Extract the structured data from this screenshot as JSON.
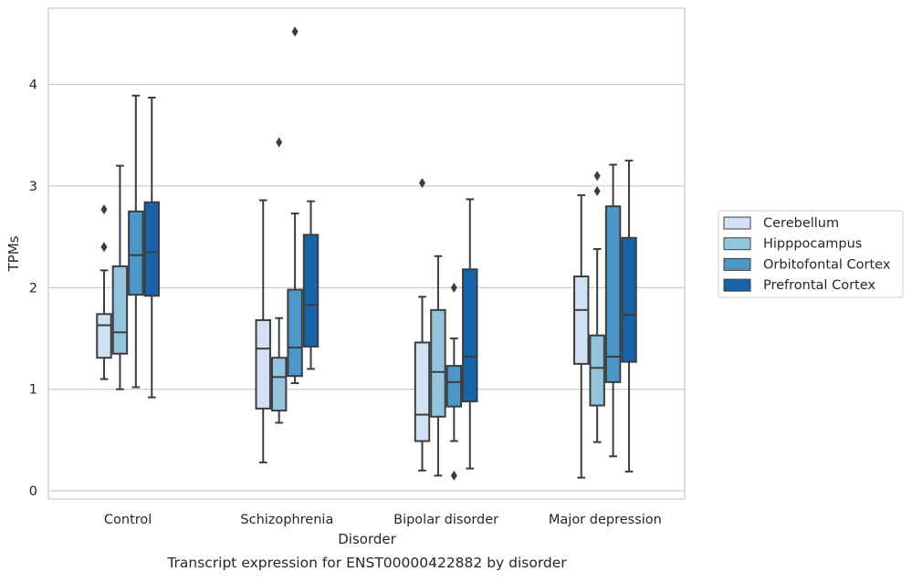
{
  "chart_data": {
    "type": "box",
    "title": "Transcript expression for ENST00000422882 by disorder",
    "xlabel": "Disorder",
    "ylabel": "TPMs",
    "ylim": [
      -0.08,
      4.75
    ],
    "yticks": [
      0,
      1,
      2,
      3,
      4
    ],
    "grid": true,
    "legend_position": "right",
    "categories": [
      "Control",
      "Schizophrenia",
      "Bipolar disorder",
      "Major depression"
    ],
    "series": [
      {
        "name": "Cerebellum",
        "color": "#cfe1f2",
        "boxes": [
          {
            "whisker_low": 1.1,
            "q1": 1.31,
            "median": 1.63,
            "q3": 1.74,
            "whisker_high": 2.17,
            "outliers": [
              2.4,
              2.77
            ]
          },
          {
            "whisker_low": 0.28,
            "q1": 0.81,
            "median": 1.4,
            "q3": 1.68,
            "whisker_high": 2.86,
            "outliers": []
          },
          {
            "whisker_low": 0.2,
            "q1": 0.49,
            "median": 0.75,
            "q3": 1.46,
            "whisker_high": 1.91,
            "outliers": [
              3.03
            ]
          },
          {
            "whisker_low": 0.13,
            "q1": 1.25,
            "median": 1.78,
            "q3": 2.11,
            "whisker_high": 2.91,
            "outliers": []
          }
        ]
      },
      {
        "name": "Hipppocampus",
        "color": "#93c4de",
        "boxes": [
          {
            "whisker_low": 1.0,
            "q1": 1.35,
            "median": 1.56,
            "q3": 2.21,
            "whisker_high": 3.2,
            "outliers": []
          },
          {
            "whisker_low": 0.67,
            "q1": 0.79,
            "median": 1.12,
            "q3": 1.31,
            "whisker_high": 1.7,
            "outliers": [
              3.43
            ]
          },
          {
            "whisker_low": 0.15,
            "q1": 0.73,
            "median": 1.17,
            "q3": 1.78,
            "whisker_high": 2.31,
            "outliers": []
          },
          {
            "whisker_low": 0.48,
            "q1": 0.84,
            "median": 1.21,
            "q3": 1.53,
            "whisker_high": 2.38,
            "outliers": [
              2.95,
              3.1
            ]
          }
        ]
      },
      {
        "name": "Orbitofontal Cortex",
        "color": "#4b97c9",
        "boxes": [
          {
            "whisker_low": 1.02,
            "q1": 1.93,
            "median": 2.32,
            "q3": 2.75,
            "whisker_high": 3.89,
            "outliers": []
          },
          {
            "whisker_low": 1.06,
            "q1": 1.13,
            "median": 1.41,
            "q3": 1.98,
            "whisker_high": 2.73,
            "outliers": [
              4.52
            ]
          },
          {
            "whisker_low": 0.49,
            "q1": 0.83,
            "median": 1.07,
            "q3": 1.23,
            "whisker_high": 1.5,
            "outliers": [
              2.0,
              0.15
            ]
          },
          {
            "whisker_low": 0.34,
            "q1": 1.07,
            "median": 1.32,
            "q3": 2.8,
            "whisker_high": 3.21,
            "outliers": []
          }
        ]
      },
      {
        "name": "Prefrontal Cortex",
        "color": "#1764ab",
        "boxes": [
          {
            "whisker_low": 0.92,
            "q1": 1.92,
            "median": 2.35,
            "q3": 2.84,
            "whisker_high": 3.87,
            "outliers": []
          },
          {
            "whisker_low": 1.2,
            "q1": 1.42,
            "median": 1.83,
            "q3": 2.52,
            "whisker_high": 2.85,
            "outliers": []
          },
          {
            "whisker_low": 0.22,
            "q1": 0.88,
            "median": 1.32,
            "q3": 2.18,
            "whisker_high": 2.87,
            "outliers": []
          },
          {
            "whisker_low": 0.19,
            "q1": 1.27,
            "median": 1.73,
            "q3": 2.49,
            "whisker_high": 3.25,
            "outliers": []
          }
        ]
      }
    ]
  }
}
